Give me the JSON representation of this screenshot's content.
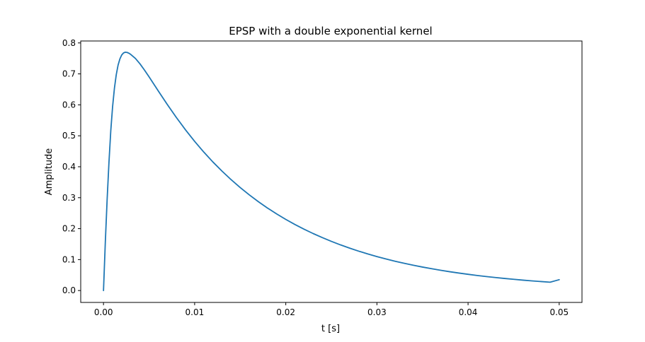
{
  "chart_data": {
    "type": "line",
    "title": "EPSP with a double exponential kernel",
    "xlabel": "t [s]",
    "ylabel": "Amplitude",
    "xlim": [
      -0.0025,
      0.0525
    ],
    "ylim": [
      -0.0384,
      0.8063
    ],
    "xticks": [
      0.0,
      0.01,
      0.02,
      0.03,
      0.04,
      0.05
    ],
    "xtick_labels": [
      "0.00",
      "0.01",
      "0.02",
      "0.03",
      "0.04",
      "0.05"
    ],
    "yticks": [
      0.0,
      0.1,
      0.2,
      0.3,
      0.4,
      0.5,
      0.6,
      0.7,
      0.8
    ],
    "ytick_labels": [
      "0.0",
      "0.1",
      "0.2",
      "0.3",
      "0.4",
      "0.5",
      "0.6",
      "0.7",
      "0.8"
    ],
    "grid": false,
    "series": [
      {
        "color": "#1f77b4",
        "x": [
          0.0,
          0.0002,
          0.0004,
          0.0006,
          0.0008,
          0.001,
          0.0012,
          0.0014,
          0.0016,
          0.0018,
          0.002,
          0.0022,
          0.0024,
          0.0026,
          0.0028,
          0.003,
          0.0035,
          0.004,
          0.0045,
          0.005,
          0.006,
          0.007,
          0.008,
          0.009,
          0.01,
          0.011,
          0.012,
          0.013,
          0.014,
          0.015,
          0.016,
          0.017,
          0.018,
          0.019,
          0.02,
          0.021,
          0.022,
          0.023,
          0.024,
          0.025,
          0.026,
          0.027,
          0.028,
          0.029,
          0.03,
          0.031,
          0.032,
          0.033,
          0.034,
          0.035,
          0.036,
          0.037,
          0.038,
          0.039,
          0.04,
          0.041,
          0.042,
          0.043,
          0.044,
          0.045,
          0.046,
          0.047,
          0.048,
          0.049,
          0.05
        ],
        "y": [
          0.0,
          0.1567,
          0.2947,
          0.4146,
          0.5169,
          0.5946,
          0.6538,
          0.6973,
          0.7284,
          0.7485,
          0.7612,
          0.7678,
          0.77,
          0.7692,
          0.7666,
          0.7626,
          0.75,
          0.7325,
          0.7121,
          0.6904,
          0.6454,
          0.6012,
          0.5589,
          0.5191,
          0.482,
          0.4475,
          0.4155,
          0.3859,
          0.3583,
          0.3327,
          0.309,
          0.287,
          0.2665,
          0.2476,
          0.2299,
          0.2135,
          0.1983,
          0.1842,
          0.1711,
          0.1589,
          0.1476,
          0.1371,
          0.1273,
          0.1182,
          0.1098,
          0.102,
          0.0947,
          0.088,
          0.0817,
          0.0759,
          0.0705,
          0.0655,
          0.0608,
          0.0565,
          0.0525,
          0.0487,
          0.0453,
          0.0421,
          0.0391,
          0.0363,
          0.0337,
          0.0313,
          0.0291,
          0.027,
          0.0351
        ]
      }
    ]
  }
}
